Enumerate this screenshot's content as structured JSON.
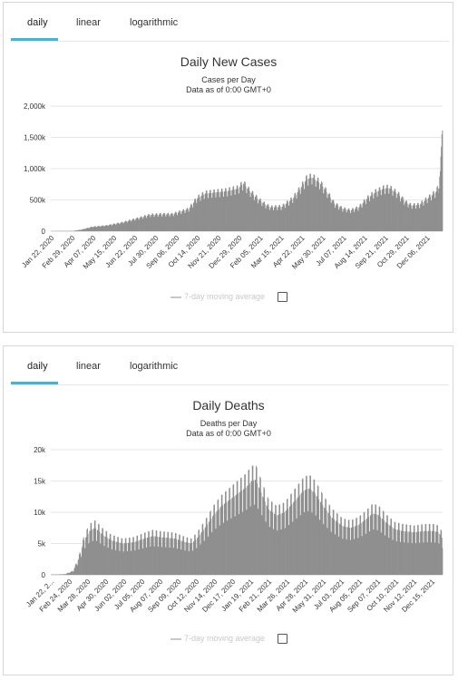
{
  "tabs": [
    "daily",
    "linear",
    "logarithmic"
  ],
  "legend_label": "7-day moving average",
  "colors": {
    "bars": "#8f8f8f",
    "tab_accent": "#3fb5de",
    "grid": "#e6e6e6"
  },
  "chart_data": [
    {
      "type": "bar",
      "title": "Daily New Cases",
      "subtitle_lines": [
        "Cases per Day",
        "Data as of 0:00 GMT+0"
      ],
      "xlabel": "",
      "ylabel": "",
      "ylim": [
        0,
        2000000
      ],
      "y_ticks": [
        0,
        500000,
        1000000,
        1500000,
        2000000
      ],
      "y_tick_labels": [
        "0",
        "500k",
        "1,000k",
        "1,500k",
        "2,000k"
      ],
      "x_tick_labels": [
        "Jan 22, 2020",
        "Feb 29, 2020",
        "Apr 07, 2020",
        "May 15, 2020",
        "Jun 22, 2020",
        "Jul 30, 2020",
        "Sep 06, 2020",
        "Oct 14, 2020",
        "Nov 21, 2020",
        "Dec 29, 2020",
        "Feb 05, 2021",
        "Mar 15, 2021",
        "Apr 22, 2021",
        "May 30, 2021",
        "Jul 07, 2021",
        "Aug 14, 2021",
        "Sep 21, 2021",
        "Oct 29, 2021",
        "Dec 06, 2021"
      ],
      "days_per_tick": 38,
      "x_start": "2020-01-22",
      "total_days": 713,
      "grid": true,
      "legend_placement": "bottom",
      "series": [
        {
          "name": "Daily Cases",
          "anchors": [
            [
              0,
              500
            ],
            [
              20,
              2000
            ],
            [
              40,
              4000
            ],
            [
              55,
              25000
            ],
            [
              75,
              70000
            ],
            [
              100,
              90000
            ],
            [
              130,
              140000
            ],
            [
              155,
              200000
            ],
            [
              180,
              260000
            ],
            [
              200,
              270000
            ],
            [
              220,
              270000
            ],
            [
              250,
              350000
            ],
            [
              265,
              520000
            ],
            [
              280,
              600000
            ],
            [
              300,
              620000
            ],
            [
              320,
              640000
            ],
            [
              340,
              680000
            ],
            [
              350,
              760000
            ],
            [
              360,
              650000
            ],
            [
              375,
              520000
            ],
            [
              390,
              420000
            ],
            [
              400,
              380000
            ],
            [
              420,
              390000
            ],
            [
              440,
              520000
            ],
            [
              455,
              700000
            ],
            [
              465,
              830000
            ],
            [
              475,
              860000
            ],
            [
              490,
              760000
            ],
            [
              505,
              580000
            ],
            [
              515,
              440000
            ],
            [
              530,
              360000
            ],
            [
              545,
              330000
            ],
            [
              560,
              380000
            ],
            [
              575,
              520000
            ],
            [
              590,
              620000
            ],
            [
              605,
              680000
            ],
            [
              615,
              690000
            ],
            [
              630,
              600000
            ],
            [
              645,
              460000
            ],
            [
              655,
              410000
            ],
            [
              670,
              420000
            ],
            [
              685,
              520000
            ],
            [
              700,
              620000
            ],
            [
              705,
              700000
            ],
            [
              708,
              960000
            ],
            [
              710,
              1250000
            ],
            [
              712,
              1850000
            ]
          ],
          "weekday_amplitude": 0.1
        }
      ]
    },
    {
      "type": "bar",
      "title": "Daily Deaths",
      "subtitle_lines": [
        "Deaths per Day",
        "Data as of 0:00 GMT+0"
      ],
      "xlabel": "",
      "ylabel": "",
      "ylim": [
        0,
        20000
      ],
      "y_ticks": [
        0,
        5000,
        10000,
        15000,
        20000
      ],
      "y_tick_labels": [
        "0",
        "5k",
        "10k",
        "15k",
        "20k"
      ],
      "x_tick_labels": [
        "Jan 22, 2...",
        "Feb 24, 2020",
        "Mar 28, 2020",
        "Apr 30, 2020",
        "Jun 02, 2020",
        "Jul 05, 2020",
        "Aug 07, 2020",
        "Sep 09, 2020",
        "Oct 12, 2020",
        "Nov 14, 2020",
        "Dec 17, 2020",
        "Jan 19, 2021",
        "Feb 21, 2021",
        "Mar 26, 2021",
        "Apr 28, 2021",
        "May 31, 2021",
        "Jul 03, 2021",
        "Aug 05, 2021",
        "Sep 07, 2021",
        "Oct 10, 2021",
        "Nov 12, 2021",
        "Dec 15, 2021"
      ],
      "days_per_tick": 33,
      "x_start": "2020-01-22",
      "total_days": 713,
      "grid": true,
      "legend_placement": "bottom",
      "series": [
        {
          "name": "Daily Deaths",
          "anchors": [
            [
              0,
              30
            ],
            [
              25,
              100
            ],
            [
              40,
              600
            ],
            [
              50,
              2500
            ],
            [
              60,
              5500
            ],
            [
              70,
              7000
            ],
            [
              80,
              7500
            ],
            [
              95,
              6300
            ],
            [
              110,
              5500
            ],
            [
              130,
              5000
            ],
            [
              150,
              5200
            ],
            [
              170,
              5800
            ],
            [
              185,
              6200
            ],
            [
              200,
              6000
            ],
            [
              225,
              5800
            ],
            [
              245,
              5200
            ],
            [
              255,
              5000
            ],
            [
              265,
              5800
            ],
            [
              280,
              7500
            ],
            [
              295,
              9500
            ],
            [
              310,
              11000
            ],
            [
              325,
              12000
            ],
            [
              340,
              13000
            ],
            [
              355,
              14000
            ],
            [
              365,
              15000
            ],
            [
              372,
              15200
            ],
            [
              385,
              12500
            ],
            [
              395,
              10500
            ],
            [
              410,
              9500
            ],
            [
              425,
              10000
            ],
            [
              445,
              12000
            ],
            [
              460,
              13500
            ],
            [
              470,
              13800
            ],
            [
              480,
              13000
            ],
            [
              495,
              11000
            ],
            [
              510,
              9200
            ],
            [
              530,
              7800
            ],
            [
              545,
              7500
            ],
            [
              560,
              8000
            ],
            [
              575,
              9000
            ],
            [
              585,
              9800
            ],
            [
              595,
              9600
            ],
            [
              610,
              8300
            ],
            [
              625,
              7300
            ],
            [
              640,
              7000
            ],
            [
              660,
              6800
            ],
            [
              680,
              7000
            ],
            [
              695,
              7000
            ],
            [
              705,
              6800
            ],
            [
              712,
              5800
            ]
          ],
          "weekday_amplitude": 0.2
        }
      ]
    }
  ]
}
